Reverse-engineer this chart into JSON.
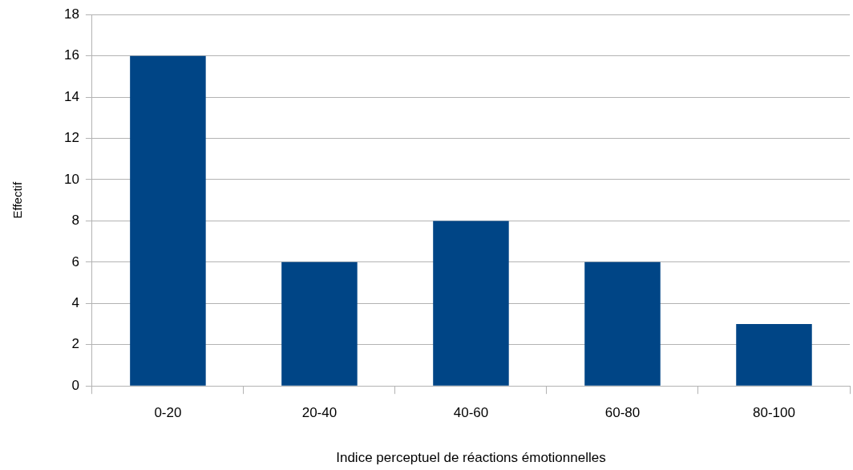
{
  "chart_data": {
    "type": "bar",
    "xlabel": "Indice perceptuel de réactions émotionnelles",
    "ylabel": "Effectif",
    "categories": [
      "0-20",
      "20-40",
      "40-60",
      "60-80",
      "80-100"
    ],
    "values": [
      16,
      6,
      8,
      6,
      3
    ],
    "color": "#004586",
    "ylim": [
      0,
      18
    ],
    "yticks": [
      0,
      2,
      4,
      6,
      8,
      10,
      12,
      14,
      16,
      18
    ],
    "grid": "y",
    "legend": false
  }
}
